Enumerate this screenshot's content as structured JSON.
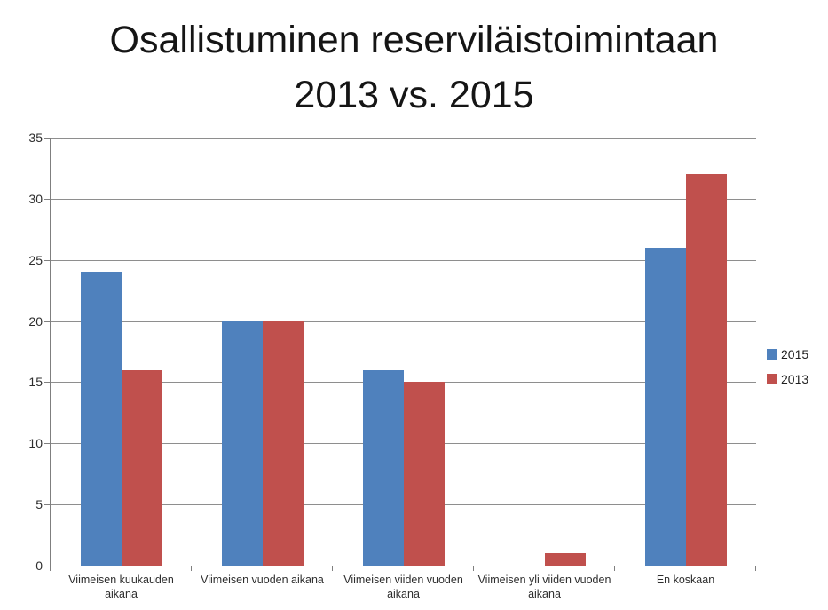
{
  "chart_data": {
    "type": "bar",
    "title": "Osallistuminen reserviläistoimintaan 2013 vs. 2015",
    "title_lines": [
      "Osallistuminen reserviläistoimintaan",
      "2013 vs. 2015"
    ],
    "categories": [
      "Viimeisen kuukauden aikana",
      "Viimeisen vuoden aikana",
      "Viimeisen viiden vuoden aikana",
      "Viimeisen yli viiden vuoden aikana",
      "En koskaan"
    ],
    "series": [
      {
        "name": "2015",
        "color": "#4F81BD",
        "values": [
          24,
          20,
          16,
          0,
          26
        ]
      },
      {
        "name": "2013",
        "color": "#C0504D",
        "values": [
          16,
          20,
          15,
          1,
          32
        ]
      }
    ],
    "xlabel": "",
    "ylabel": "",
    "ylim": [
      0,
      35
    ],
    "yticks": [
      0,
      5,
      10,
      15,
      20,
      25,
      30,
      35
    ],
    "grid": true,
    "legend_position": "right"
  },
  "colors": {
    "background": "#FFFFFF",
    "gridline": "#8E8E8E",
    "axis": "#7F7F7F",
    "title_text": "#151515",
    "label_text": "#2E2E2E",
    "series_2015": "#4F81BD",
    "series_2013": "#C0504D"
  }
}
